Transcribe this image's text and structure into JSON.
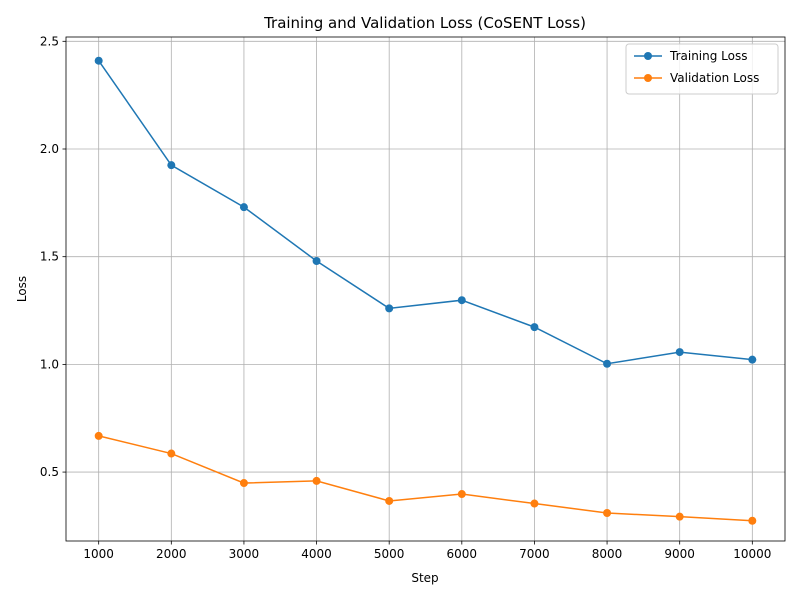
{
  "chart_data": {
    "type": "line",
    "title": "Training and Validation Loss (CoSENT Loss)",
    "xlabel": "Step",
    "ylabel": "Loss",
    "x": [
      1000,
      2000,
      3000,
      4000,
      5000,
      6000,
      7000,
      8000,
      9000,
      10000
    ],
    "x_tick_labels": [
      "1000",
      "2000",
      "3000",
      "4000",
      "5000",
      "6000",
      "7000",
      "8000",
      "9000",
      "10000"
    ],
    "y_ticks": [
      0.5,
      1.0,
      1.5,
      2.0,
      2.5
    ],
    "y_tick_labels": [
      "0.5",
      "1.0",
      "1.5",
      "2.0",
      "2.5"
    ],
    "xlim": [
      550,
      10450
    ],
    "ylim": [
      0.18,
      2.52
    ],
    "grid": true,
    "legend_position": "top-right",
    "series": [
      {
        "name": "Training Loss",
        "color": "#1f77b4",
        "values": [
          2.41,
          1.925,
          1.73,
          1.48,
          1.26,
          1.298,
          1.173,
          1.003,
          1.057,
          1.022
        ]
      },
      {
        "name": "Validation Loss",
        "color": "#ff7f0e",
        "values": [
          0.668,
          0.586,
          0.449,
          0.459,
          0.366,
          0.398,
          0.354,
          0.31,
          0.293,
          0.274
        ]
      }
    ]
  }
}
